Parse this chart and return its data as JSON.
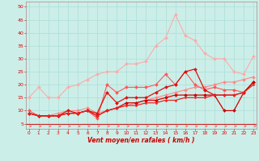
{
  "bg_color": "#cceee8",
  "grid_color": "#aaddd8",
  "x_label": "Vent moyen/en rafales ( km/h )",
  "x_ticks": [
    0,
    1,
    2,
    3,
    4,
    5,
    6,
    7,
    8,
    9,
    10,
    11,
    12,
    13,
    14,
    15,
    16,
    17,
    18,
    19,
    20,
    21,
    22,
    23
  ],
  "y_ticks": [
    5,
    10,
    15,
    20,
    25,
    30,
    35,
    40,
    45,
    50
  ],
  "ylim": [
    3,
    52
  ],
  "xlim": [
    -0.3,
    23.3
  ],
  "series": [
    {
      "color": "#ffaaaa",
      "linewidth": 0.8,
      "marker": "D",
      "markersize": 2.0,
      "data": [
        [
          0,
          15
        ],
        [
          1,
          19
        ],
        [
          2,
          15
        ],
        [
          3,
          15
        ],
        [
          4,
          19
        ],
        [
          5,
          20
        ],
        [
          6,
          22
        ],
        [
          7,
          24
        ],
        [
          8,
          25
        ],
        [
          9,
          25
        ],
        [
          10,
          28
        ],
        [
          11,
          28
        ],
        [
          12,
          29
        ],
        [
          13,
          35
        ],
        [
          14,
          38
        ],
        [
          15,
          47
        ],
        [
          16,
          39
        ],
        [
          17,
          37
        ],
        [
          18,
          32
        ],
        [
          19,
          30
        ],
        [
          20,
          30
        ],
        [
          21,
          25
        ],
        [
          22,
          24
        ],
        [
          23,
          31
        ]
      ]
    },
    {
      "color": "#ff8888",
      "linewidth": 0.8,
      "marker": "D",
      "markersize": 2.0,
      "data": [
        [
          0,
          9
        ],
        [
          1,
          8
        ],
        [
          2,
          8
        ],
        [
          3,
          9
        ],
        [
          4,
          10
        ],
        [
          5,
          10
        ],
        [
          6,
          11
        ],
        [
          7,
          9
        ],
        [
          8,
          10
        ],
        [
          9,
          11
        ],
        [
          10,
          12
        ],
        [
          11,
          13
        ],
        [
          12,
          14
        ],
        [
          13,
          15
        ],
        [
          14,
          16
        ],
        [
          15,
          17
        ],
        [
          16,
          18
        ],
        [
          17,
          19
        ],
        [
          18,
          19
        ],
        [
          19,
          20
        ],
        [
          20,
          21
        ],
        [
          21,
          21
        ],
        [
          22,
          22
        ],
        [
          23,
          23
        ]
      ]
    },
    {
      "color": "#ff5555",
      "linewidth": 0.8,
      "marker": "D",
      "markersize": 2.0,
      "data": [
        [
          0,
          10
        ],
        [
          1,
          8
        ],
        [
          2,
          8
        ],
        [
          3,
          8
        ],
        [
          4,
          9
        ],
        [
          5,
          9
        ],
        [
          6,
          10
        ],
        [
          7,
          7
        ],
        [
          8,
          20
        ],
        [
          9,
          17
        ],
        [
          10,
          19
        ],
        [
          11,
          19
        ],
        [
          12,
          19
        ],
        [
          13,
          20
        ],
        [
          14,
          24
        ],
        [
          15,
          20
        ],
        [
          16,
          25
        ],
        [
          17,
          20
        ],
        [
          18,
          18
        ],
        [
          19,
          19
        ],
        [
          20,
          18
        ],
        [
          21,
          18
        ],
        [
          22,
          17
        ],
        [
          23,
          21
        ]
      ]
    },
    {
      "color": "#dd1111",
      "linewidth": 0.9,
      "marker": "D",
      "markersize": 2.0,
      "data": [
        [
          0,
          9
        ],
        [
          1,
          8
        ],
        [
          2,
          8
        ],
        [
          3,
          8
        ],
        [
          4,
          10
        ],
        [
          5,
          9
        ],
        [
          6,
          10
        ],
        [
          7,
          9
        ],
        [
          8,
          17
        ],
        [
          9,
          13
        ],
        [
          10,
          15
        ],
        [
          11,
          15
        ],
        [
          12,
          15
        ],
        [
          13,
          17
        ],
        [
          14,
          19
        ],
        [
          15,
          20
        ],
        [
          16,
          25
        ],
        [
          17,
          26
        ],
        [
          18,
          18
        ],
        [
          19,
          16
        ],
        [
          20,
          16
        ],
        [
          21,
          16
        ],
        [
          22,
          17
        ],
        [
          23,
          21
        ]
      ]
    },
    {
      "color": "#cc0000",
      "linewidth": 0.9,
      "marker": "D",
      "markersize": 2.0,
      "data": [
        [
          0,
          9
        ],
        [
          1,
          8
        ],
        [
          2,
          8
        ],
        [
          3,
          8
        ],
        [
          4,
          9
        ],
        [
          5,
          9
        ],
        [
          6,
          10
        ],
        [
          7,
          8
        ],
        [
          8,
          10
        ],
        [
          9,
          11
        ],
        [
          10,
          13
        ],
        [
          11,
          13
        ],
        [
          12,
          14
        ],
        [
          13,
          14
        ],
        [
          14,
          15
        ],
        [
          15,
          16
        ],
        [
          16,
          16
        ],
        [
          17,
          16
        ],
        [
          18,
          16
        ],
        [
          19,
          16
        ],
        [
          20,
          10
        ],
        [
          21,
          10
        ],
        [
          22,
          17
        ],
        [
          23,
          21
        ]
      ]
    },
    {
      "color": "#ee2222",
      "linewidth": 0.9,
      "marker": "D",
      "markersize": 1.5,
      "data": [
        [
          0,
          9
        ],
        [
          1,
          8
        ],
        [
          2,
          8
        ],
        [
          3,
          8
        ],
        [
          4,
          9
        ],
        [
          5,
          9
        ],
        [
          6,
          10
        ],
        [
          7,
          8
        ],
        [
          8,
          10
        ],
        [
          9,
          11
        ],
        [
          10,
          12
        ],
        [
          11,
          12
        ],
        [
          12,
          13
        ],
        [
          13,
          13
        ],
        [
          14,
          14
        ],
        [
          15,
          14
        ],
        [
          16,
          15
        ],
        [
          17,
          15
        ],
        [
          18,
          15
        ],
        [
          19,
          16
        ],
        [
          20,
          16
        ],
        [
          21,
          16
        ],
        [
          22,
          17
        ],
        [
          23,
          20
        ]
      ]
    }
  ],
  "arrow_color": "#ff5555",
  "bottom_line_color": "#cc2222",
  "tick_color": "#dd0000",
  "label_color": "#cc0000",
  "spine_color": "#aa8888"
}
